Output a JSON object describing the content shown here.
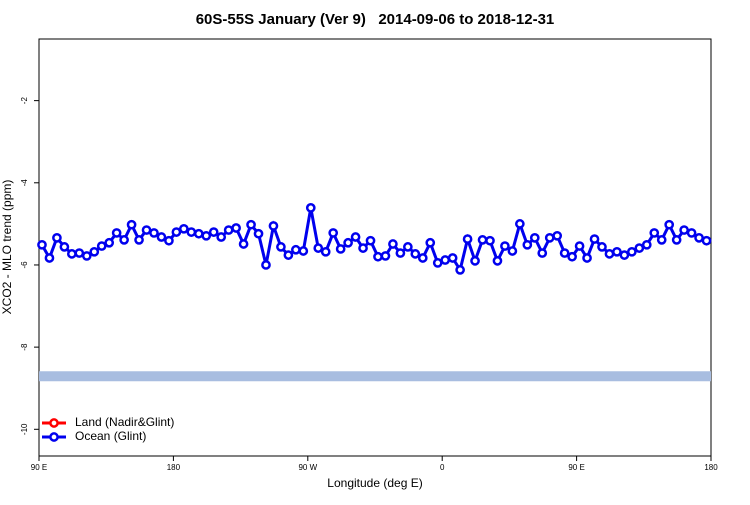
{
  "chart_data": {
    "type": "line",
    "title": "60S-55S January (Ver 9)   2014-09-06 to 2018-12-31",
    "x_label": "Longitude (deg E)",
    "y_label": "XCO2 - MLO trend (ppm)",
    "xlim": [
      90,
      540
    ],
    "xticks": [
      {
        "value": 90,
        "label": "90 E"
      },
      {
        "value": 180,
        "label": "180"
      },
      {
        "value": 270,
        "label": "90 W"
      },
      {
        "value": 360,
        "label": "0"
      },
      {
        "value": 450,
        "label": "90 E"
      },
      {
        "value": 540,
        "label": "180"
      }
    ],
    "ylim": [
      -10.65,
      -0.5
    ],
    "yticks": [
      -2,
      -4,
      -6,
      -8,
      -10
    ],
    "x": [
      92,
      97,
      102,
      107,
      112,
      117,
      122,
      127,
      132,
      137,
      142,
      147,
      152,
      157,
      162,
      167,
      172,
      177,
      182,
      187,
      192,
      197,
      202,
      207,
      212,
      217,
      222,
      227,
      232,
      237,
      242,
      247,
      252,
      257,
      262,
      267,
      272,
      277,
      282,
      287,
      292,
      297,
      302,
      307,
      312,
      317,
      322,
      327,
      332,
      337,
      342,
      347,
      352,
      357,
      362,
      367,
      372,
      377,
      382,
      387,
      392,
      397,
      402,
      407,
      412,
      417,
      422,
      427,
      432,
      437,
      442,
      447,
      452,
      457,
      462,
      467,
      472,
      477,
      482,
      487,
      492,
      497,
      502,
      507,
      512,
      517,
      522,
      527,
      532,
      537
    ],
    "series": [
      {
        "name": "Ocean (Glint)",
        "color": "#0000ee",
        "values": [
          -5.51,
          -5.83,
          -5.34,
          -5.56,
          -5.73,
          -5.71,
          -5.78,
          -5.68,
          -5.54,
          -5.46,
          -5.22,
          -5.39,
          -5.02,
          -5.39,
          -5.15,
          -5.22,
          -5.32,
          -5.41,
          -5.2,
          -5.12,
          -5.2,
          -5.24,
          -5.29,
          -5.2,
          -5.32,
          -5.15,
          -5.1,
          -5.49,
          -5.02,
          -5.24,
          -6.0,
          -5.05,
          -5.56,
          -5.76,
          -5.63,
          -5.66,
          -4.61,
          -5.59,
          -5.68,
          -5.22,
          -5.61,
          -5.46,
          -5.32,
          -5.59,
          -5.41,
          -5.8,
          -5.78,
          -5.49,
          -5.71,
          -5.56,
          -5.73,
          -5.83,
          -5.46,
          -5.95,
          -5.88,
          -5.83,
          -6.12,
          -5.37,
          -5.9,
          -5.39,
          -5.41,
          -5.9,
          -5.54,
          -5.66,
          -5.0,
          -5.51,
          -5.34,
          -5.71,
          -5.34,
          -5.29,
          -5.71,
          -5.8,
          -5.54,
          -5.83,
          -5.37,
          -5.56,
          -5.73,
          -5.68,
          -5.76,
          -5.68,
          -5.59,
          -5.51,
          -5.22,
          -5.39,
          -5.02,
          -5.39,
          -5.15,
          -5.22,
          -5.34,
          -5.41
        ]
      }
    ],
    "legend_only": [
      {
        "name": "Land (Nadir&Glint)",
        "color": "#ff0000"
      }
    ],
    "reference_band": {
      "value": -8.71,
      "color": "#a8bde0"
    }
  }
}
